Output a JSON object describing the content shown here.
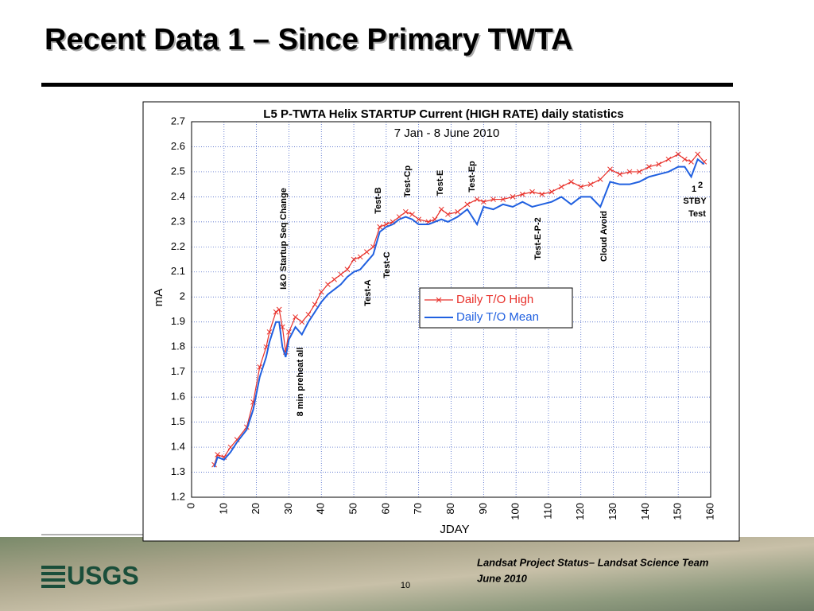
{
  "slide": {
    "title": "Recent Data 1 – Since Primary TWTA",
    "logo": "USGS",
    "footer_line1": "Landsat Project Status– Landsat Science Team",
    "footer_line2": "June 2010",
    "page_number": "10"
  },
  "chart_data": {
    "type": "line",
    "title": "L5 P-TWTA Helix STARTUP Current (HIGH RATE) daily statistics",
    "subtitle": "7 Jan - 8 June 2010",
    "x_label": "JDAY",
    "y_label": "mA",
    "x": [
      7,
      8,
      10,
      12,
      14,
      17,
      19,
      21,
      23,
      24,
      26,
      27,
      28,
      29,
      30,
      32,
      34,
      36,
      38,
      40,
      42,
      44,
      46,
      48,
      50,
      52,
      54,
      56,
      58,
      60,
      62,
      64,
      66,
      68,
      70,
      73,
      75,
      77,
      79,
      82,
      85,
      88,
      90,
      93,
      96,
      99,
      102,
      105,
      108,
      111,
      114,
      117,
      120,
      123,
      126,
      129,
      132,
      135,
      138,
      141,
      144,
      147,
      150,
      152,
      154,
      156,
      158
    ],
    "series": [
      {
        "name": "Daily T/O High",
        "color": "#e8302a",
        "marker": "x",
        "values": [
          1.33,
          1.37,
          1.36,
          1.4,
          1.43,
          1.48,
          1.58,
          1.72,
          1.8,
          1.86,
          1.94,
          1.95,
          1.88,
          1.78,
          1.86,
          1.92,
          1.9,
          1.93,
          1.97,
          2.02,
          2.05,
          2.07,
          2.09,
          2.11,
          2.15,
          2.16,
          2.18,
          2.2,
          2.28,
          2.29,
          2.3,
          2.32,
          2.34,
          2.33,
          2.31,
          2.3,
          2.31,
          2.35,
          2.33,
          2.34,
          2.37,
          2.39,
          2.38,
          2.39,
          2.39,
          2.4,
          2.41,
          2.42,
          2.41,
          2.42,
          2.44,
          2.46,
          2.44,
          2.45,
          2.47,
          2.51,
          2.49,
          2.5,
          2.5,
          2.52,
          2.53,
          2.55,
          2.57,
          2.55,
          2.54,
          2.57,
          2.54
        ]
      },
      {
        "name": "Daily T/O Mean",
        "color": "#2060e0",
        "values": [
          1.32,
          1.36,
          1.35,
          1.38,
          1.42,
          1.47,
          1.55,
          1.68,
          1.76,
          1.82,
          1.9,
          1.9,
          1.8,
          1.76,
          1.83,
          1.88,
          1.85,
          1.9,
          1.94,
          1.98,
          2.01,
          2.03,
          2.05,
          2.08,
          2.1,
          2.11,
          2.14,
          2.17,
          2.26,
          2.28,
          2.29,
          2.31,
          2.32,
          2.31,
          2.29,
          2.29,
          2.3,
          2.31,
          2.3,
          2.32,
          2.35,
          2.29,
          2.36,
          2.35,
          2.37,
          2.36,
          2.38,
          2.36,
          2.37,
          2.38,
          2.4,
          2.37,
          2.4,
          2.4,
          2.36,
          2.46,
          2.45,
          2.45,
          2.46,
          2.48,
          2.49,
          2.5,
          2.52,
          2.52,
          2.48,
          2.55,
          2.53
        ]
      }
    ],
    "xlim": [
      0,
      160
    ],
    "xticks": [
      0,
      10,
      20,
      30,
      40,
      50,
      60,
      70,
      80,
      90,
      100,
      110,
      120,
      130,
      140,
      150,
      160
    ],
    "ylim": [
      1.2,
      2.7
    ],
    "yticks": [
      1.2,
      1.3,
      1.4,
      1.5,
      1.6,
      1.7,
      1.8,
      1.9,
      2,
      2.1,
      2.2,
      2.3,
      2.4,
      2.5,
      2.6,
      2.7
    ],
    "grid": true,
    "legend": "center",
    "annotations": [
      "I&O Startup Seq Change",
      "8 min preheat all",
      "Test-A",
      "Test-B",
      "Test-C",
      "Test-Cp",
      "Test-E",
      "Test-Ep",
      "Test-E-P-2",
      "Cloud Avoid",
      "1",
      "2",
      "STBY",
      "Test"
    ]
  }
}
